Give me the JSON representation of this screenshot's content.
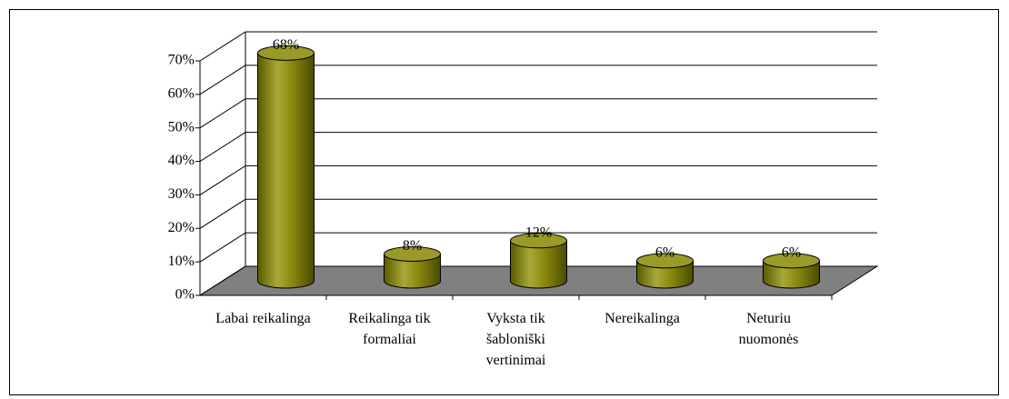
{
  "chart_data": {
    "type": "bar",
    "categories": [
      "Labai reikalinga",
      "Reikalinga tik\nformaliai",
      "Vyksta tik\nšabloniški\nvertinimai",
      "Nereikalinga",
      "Neturiu\nnuomonės"
    ],
    "values": [
      68,
      8,
      12,
      6,
      6
    ],
    "value_labels": [
      "68%",
      "8%",
      "12%",
      "6%",
      "6%"
    ],
    "color": "#808000",
    "ylim": [
      0,
      70
    ],
    "yticks": [
      {
        "value": 0,
        "label": "0%"
      },
      {
        "value": 10,
        "label": "10%"
      },
      {
        "value": 20,
        "label": "20%"
      },
      {
        "value": 30,
        "label": "30%"
      },
      {
        "value": 40,
        "label": "40%"
      },
      {
        "value": 50,
        "label": "50%"
      },
      {
        "value": 60,
        "label": "60%"
      },
      {
        "value": 70,
        "label": "70%"
      }
    ],
    "grid": true
  }
}
